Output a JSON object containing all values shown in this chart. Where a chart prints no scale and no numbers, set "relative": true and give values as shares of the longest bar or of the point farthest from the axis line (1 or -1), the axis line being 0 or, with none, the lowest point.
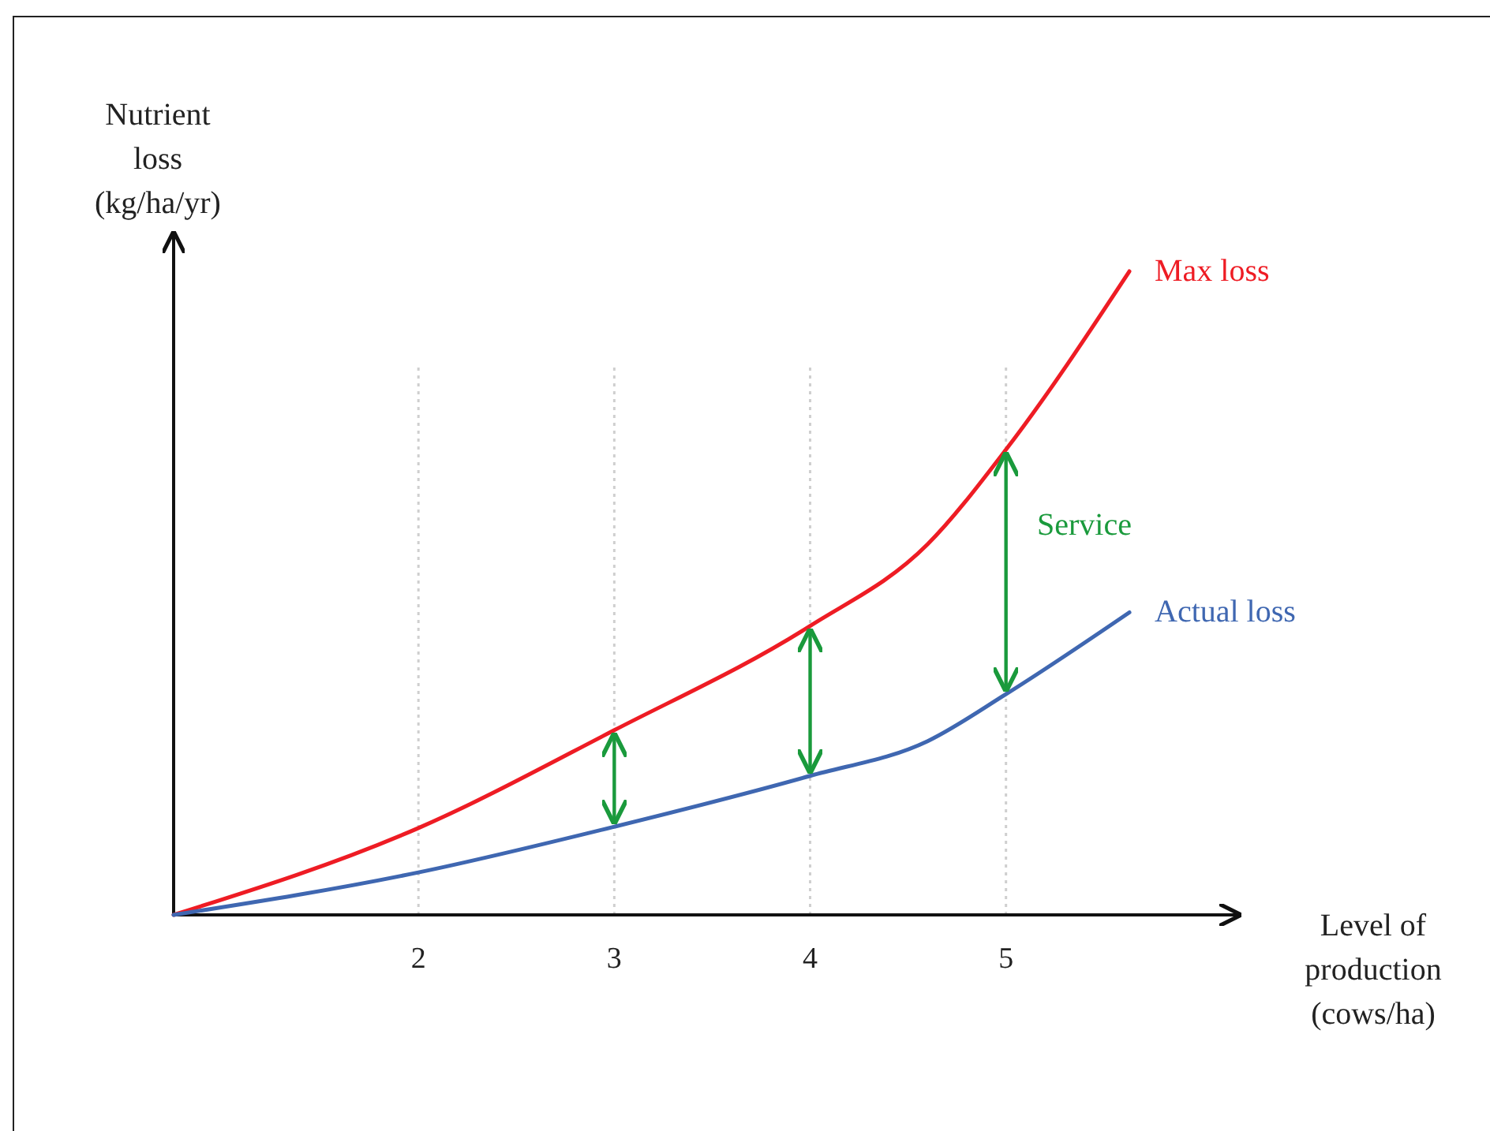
{
  "chart_data": {
    "type": "line",
    "relative": true,
    "xlabel": "Level of production (cows/ha)",
    "ylabel": "Nutrient loss (kg/ha/yr)",
    "xlim": [
      0.75,
      6.19
    ],
    "xticks": [
      2,
      3,
      4,
      5
    ],
    "grid": "x",
    "marker": "none",
    "line_style": "solid",
    "x": [
      0.75,
      2,
      3,
      4,
      4.6,
      5,
      5.63
    ],
    "series": [
      {
        "name": "Max loss",
        "color": "#ee1c24",
        "values": [
          0,
          0.135,
          0.287,
          0.449,
          0.576,
          0.723,
          1
        ]
      },
      {
        "name": "Actual loss",
        "color": "#3f67b1",
        "values": [
          0,
          0.066,
          0.137,
          0.216,
          0.27,
          0.343,
          0.47
        ]
      }
    ],
    "annotations": [
      "Service"
    ]
  }
}
